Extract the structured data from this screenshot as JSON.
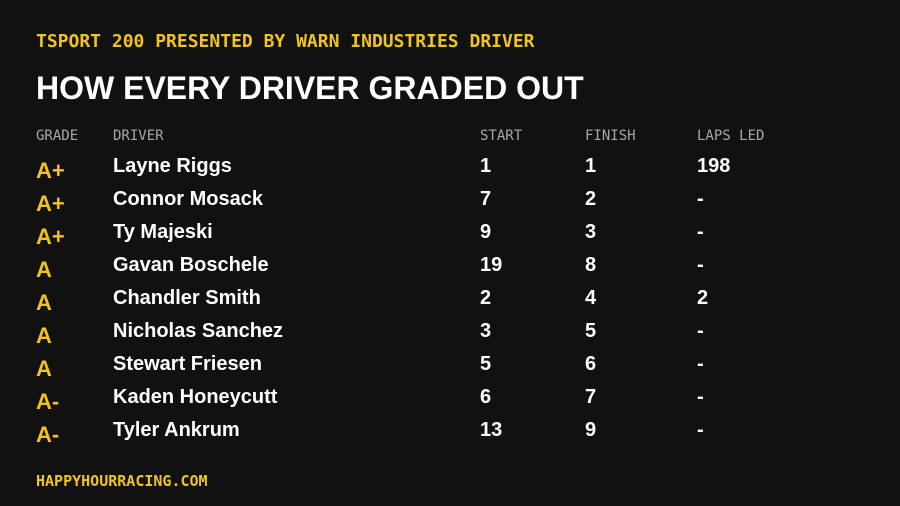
{
  "header": {
    "subtitle": "TSPORT 200 PRESENTED BY WARN INDUSTRIES DRIVER",
    "title": "HOW EVERY DRIVER GRADED OUT"
  },
  "table": {
    "columns": [
      "GRADE",
      "DRIVER",
      "START",
      "FINISH",
      "LAPS LED"
    ],
    "rows": [
      [
        "A+",
        "Layne Riggs",
        1,
        1,
        198
      ],
      [
        "A+",
        "Connor Mosack",
        7,
        2,
        "-"
      ],
      [
        "A+",
        "Ty Majeski",
        9,
        3,
        "-"
      ],
      [
        "A",
        "Gavan Boschele",
        19,
        8,
        "-"
      ],
      [
        "A",
        "Chandler Smith",
        2,
        4,
        2
      ],
      [
        "A",
        "Nicholas Sanchez",
        3,
        5,
        "-"
      ],
      [
        "A",
        "Stewart Friesen",
        5,
        6,
        "-"
      ],
      [
        "A-",
        "Kaden Honeycutt",
        6,
        7,
        "-"
      ],
      [
        "A-",
        "Tyler Ankrum",
        13,
        9,
        "-"
      ]
    ]
  },
  "footer": {
    "site": "HAPPYHOURRACING.COM"
  }
}
